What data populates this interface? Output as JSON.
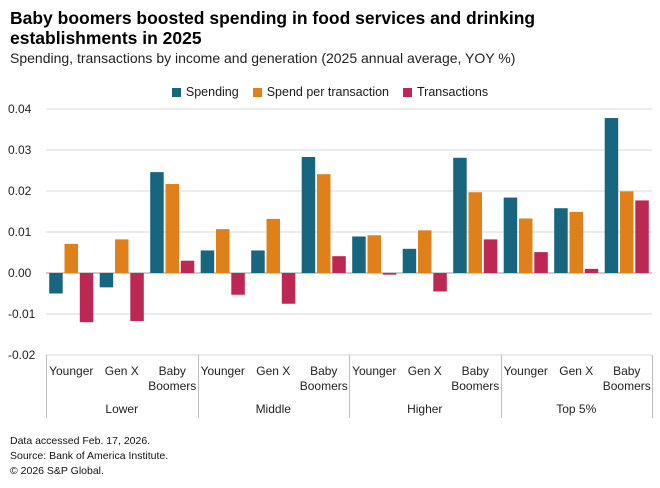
{
  "header": {
    "title": "Baby boomers boosted spending in food services and drinking establishments in 2025",
    "subtitle": "Spending, transactions by income and generation (2025 annual average, YOY %)"
  },
  "footer": {
    "accessed": "Data accessed Feb. 17, 2026.",
    "source": "Source: Bank of America Institute.",
    "copyright": "© 2026 S&P Global."
  },
  "chart_data": {
    "type": "bar",
    "title": "Baby boomers boosted spending in food services and drinking establishments in 2025",
    "subtitle": "Spending, transactions by income and generation (2025 annual average, YOY %)",
    "ylim": [
      -0.02,
      0.04
    ],
    "yticks": [
      "0.04",
      "0.03",
      "0.02",
      "0.01",
      "0.00",
      "-0.01",
      "-0.02"
    ],
    "ytick_values": [
      0.04,
      0.03,
      0.02,
      0.01,
      0.0,
      -0.01,
      -0.02
    ],
    "grid": true,
    "legend_position": "top-center",
    "groups": [
      {
        "label": "Lower",
        "categories": [
          [
            "Younger"
          ],
          [
            "Gen X"
          ],
          [
            "Baby",
            "Boomers"
          ]
        ]
      },
      {
        "label": "Middle",
        "categories": [
          [
            "Younger"
          ],
          [
            "Gen X"
          ],
          [
            "Baby",
            "Boomers"
          ]
        ]
      },
      {
        "label": "Higher",
        "categories": [
          [
            "Younger"
          ],
          [
            "Gen X"
          ],
          [
            "Baby",
            "Boomers"
          ]
        ]
      },
      {
        "label": "Top 5%",
        "categories": [
          [
            "Younger"
          ],
          [
            "Gen X"
          ],
          [
            "Baby",
            "Boomers"
          ]
        ]
      }
    ],
    "series": [
      {
        "name": "Spending",
        "color": "#17657e",
        "values": [
          -0.005,
          -0.0035,
          0.0246,
          0.0055,
          0.0055,
          0.0283,
          0.0089,
          0.0059,
          0.0281,
          0.0184,
          0.0158,
          0.0378
        ]
      },
      {
        "name": "Spend per transaction",
        "color": "#e0801a",
        "values": [
          0.0071,
          0.0082,
          0.0217,
          0.0107,
          0.0132,
          0.0241,
          0.0092,
          0.0104,
          0.0197,
          0.0133,
          0.0149,
          0.0199
        ]
      },
      {
        "name": "Transactions",
        "color": "#bd2753",
        "values": [
          -0.012,
          -0.0117,
          0.003,
          -0.0053,
          -0.0075,
          0.0041,
          -0.0004,
          -0.0045,
          0.0082,
          0.0051,
          0.001,
          0.0177
        ]
      }
    ]
  }
}
